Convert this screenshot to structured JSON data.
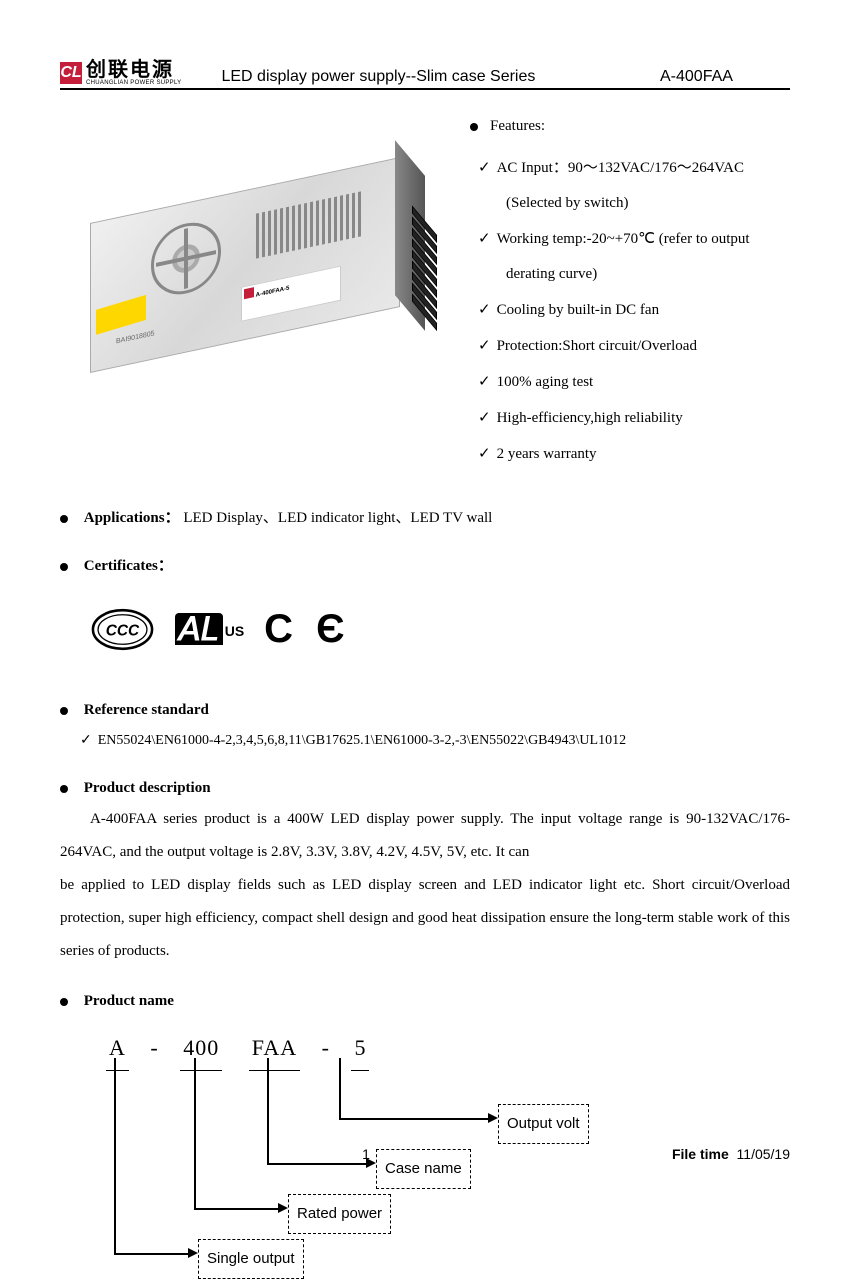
{
  "header": {
    "logo_cn": "创联电源",
    "logo_en": "CHUANGLIAN POWER SUPPLY",
    "title": "LED display power supply--Slim case Series",
    "model": "A-400FAA"
  },
  "features": {
    "title": "Features:",
    "items": [
      "AC Input：90～132VAC/176～264VAC",
      "(Selected by switch)",
      "Working temp:-20~+70℃ (refer to output",
      "derating curve)",
      "Cooling by built-in DC fan",
      "Protection:Short circuit/Overload",
      "100% aging test",
      "High-efficiency,high reliability",
      "2 years warranty"
    ],
    "item_types": [
      "check",
      "indent",
      "check",
      "indent",
      "check",
      "check",
      "check",
      "check",
      "check"
    ]
  },
  "applications": {
    "label": "Applications：",
    "text": "LED Display、LED indicator light、LED TV wall"
  },
  "certificates": {
    "label": "Certificates："
  },
  "reference": {
    "label": "Reference standard",
    "text": "EN55024\\EN61000-4-2,3,4,5,6,8,11\\GB17625.1\\EN61000-3-2,-3\\EN55022\\GB4943\\UL1012"
  },
  "description": {
    "label": "Product description",
    "p1": "A-400FAA series product is a 400W LED display power supply. The input voltage range is 90-132VAC/176-264VAC, and the output voltage is 2.8V, 3.3V, 3.8V, 4.2V, 4.5V, 5V, etc. It can",
    "p2": "be applied to LED display fields such as LED display screen and LED indicator light etc. Short circuit/Overload protection, super high efficiency, compact shell design and good heat dissipation ensure the long-term stable work of this series of products."
  },
  "product_name": {
    "label": "Product name",
    "parts": {
      "a": "A",
      "dash1": "-",
      "power": "400",
      "case": "FAA",
      "dash2": "-",
      "volt": "5"
    },
    "boxes": {
      "output_volt": "Output volt",
      "case_name": "Case name",
      "rated_power": "Rated power",
      "single_output": "Single output"
    }
  },
  "psu": {
    "model_label": "A-400FAA-5",
    "barcode": "BAI9018805"
  },
  "footer": {
    "page": "1",
    "file_time_label": "File  time",
    "file_time": "11/05/19"
  },
  "colors": {
    "brand_red": "#c41e3a",
    "text": "#000000",
    "bg": "#ffffff"
  }
}
